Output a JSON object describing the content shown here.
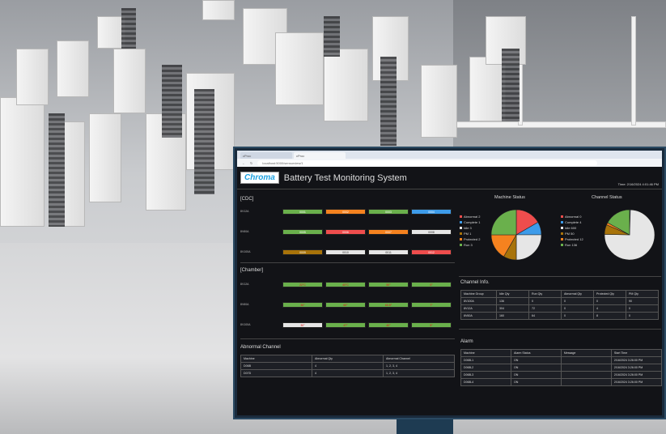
{
  "browser": {
    "tabs": [
      "cProc",
      "cProc"
    ],
    "url": "localhost:5000/sensorview/1"
  },
  "header": {
    "logo": "Chroma",
    "title": "Battery Test Monitoring System",
    "time": "Time: 2/16/2024 4:01:46 PM"
  },
  "colors": {
    "green": "#6ab04c",
    "orange": "#f5821f",
    "blue": "#3d9be9",
    "red": "#ef4d4d",
    "white": "#e6e6e6",
    "brown": "#a8730a"
  },
  "cdc": {
    "label": "[CDC]",
    "rows": [
      {
        "name": "8V12A",
        "items": [
          {
            "t": "0001",
            "c": "green"
          },
          {
            "t": "0002",
            "c": "orange"
          },
          {
            "t": "0003",
            "c": "green"
          },
          {
            "t": "0004",
            "c": "blue"
          }
        ]
      },
      {
        "name": "8V60A",
        "items": [
          {
            "t": "0005",
            "c": "green"
          },
          {
            "t": "0006",
            "c": "red"
          },
          {
            "t": "0007",
            "c": "orange"
          },
          {
            "t": "0008",
            "c": "white"
          }
        ]
      },
      {
        "name": "8V100A",
        "items": [
          {
            "t": "0009",
            "c": "brown"
          },
          {
            "t": "0010",
            "c": "white"
          },
          {
            "t": "0011",
            "c": "white"
          },
          {
            "t": "0012",
            "c": "red"
          }
        ]
      }
    ]
  },
  "chamber": {
    "label": "[Chamber]",
    "rows": [
      {
        "name": "8V12A",
        "items": [
          {
            "t": "22°C",
            "c": "green"
          },
          {
            "t": "40°C",
            "c": "green"
          },
          {
            "t": "50°",
            "c": "green"
          },
          {
            "t": "0°",
            "c": "green"
          }
        ]
      },
      {
        "name": "8V60A",
        "items": [
          {
            "t": "30°",
            "c": "green"
          },
          {
            "t": "60°",
            "c": "green"
          },
          {
            "t": "60.5°",
            "c": "green"
          },
          {
            "t": "7°",
            "c": "green"
          }
        ]
      },
      {
        "name": "8V100A",
        "items": [
          {
            "t": "30°",
            "c": "white"
          },
          {
            "t": "47°",
            "c": "green"
          },
          {
            "t": "40°",
            "c": "green"
          },
          {
            "t": "5°",
            "c": "green"
          }
        ]
      }
    ]
  },
  "abnormal": {
    "title": "Abnormal Channel",
    "headers": [
      "Machine",
      "Abnormal Qty",
      "Abnormal Channel"
    ],
    "rows": [
      [
        "D06B",
        "4",
        "1, 2, 3, 4"
      ],
      [
        "D07D",
        "4",
        "1, 2, 3, 4"
      ]
    ]
  },
  "chart_data": [
    {
      "type": "pie",
      "title": "Machine Status",
      "categories": [
        "Abnormal",
        "Complete",
        "Idle",
        "PM",
        "Protected",
        "Run"
      ],
      "values": [
        2,
        1,
        3,
        1,
        2,
        3
      ],
      "legend": [
        "Abnormal 2",
        "Complete 1",
        "Idle 3",
        "PM 1",
        "Protected 2",
        "Run 3"
      ],
      "colors": [
        "#ef4d4d",
        "#3d9be9",
        "#e6e6e6",
        "#a8730a",
        "#f5821f",
        "#6ab04c"
      ],
      "legend_position": "left"
    },
    {
      "type": "pie",
      "title": "Channel Status",
      "categories": [
        "Abnormal",
        "Complete",
        "Idle",
        "PM",
        "Protected",
        "Run"
      ],
      "values": [
        0,
        4,
        600,
        50,
        12,
        136
      ],
      "legend": [
        "Abnormal 0",
        "Complete 4",
        "Idle 600",
        "PM 50",
        "Protected 12",
        "Run 136"
      ],
      "colors": [
        "#ef4d4d",
        "#3d9be9",
        "#e6e6e6",
        "#a8730a",
        "#f5821f",
        "#6ab04c"
      ],
      "legend_position": "left"
    }
  ],
  "channel_info": {
    "title": "Channel Info.",
    "headers": [
      "Machine Group",
      "Idle Qty",
      "Run Qty",
      "Abnormal Qty",
      "Protected Qty",
      "PM Qty"
    ],
    "rows": [
      [
        "8V100A",
        "136",
        "0",
        "0",
        "0",
        "90"
      ],
      [
        "8V12A",
        "304",
        "72",
        "0",
        "4",
        "0"
      ],
      [
        "8V60A",
        "160",
        "64",
        "0",
        "8",
        "0"
      ]
    ]
  },
  "alarm": {
    "title": "Alarm",
    "headers": [
      "Machine",
      "Alarm Status",
      "Message",
      "Start Time"
    ],
    "rows": [
      [
        "D06B-1",
        "ON",
        "",
        "2/16/2024 3:26:00 PM"
      ],
      [
        "D06B-2",
        "ON",
        "",
        "2/16/2024 3:26:00 PM"
      ],
      [
        "D06B-3",
        "ON",
        "",
        "2/16/2024 3:26:00 PM"
      ],
      [
        "D06B-4",
        "ON",
        "",
        "2/16/2024 3:26:00 PM"
      ]
    ]
  }
}
